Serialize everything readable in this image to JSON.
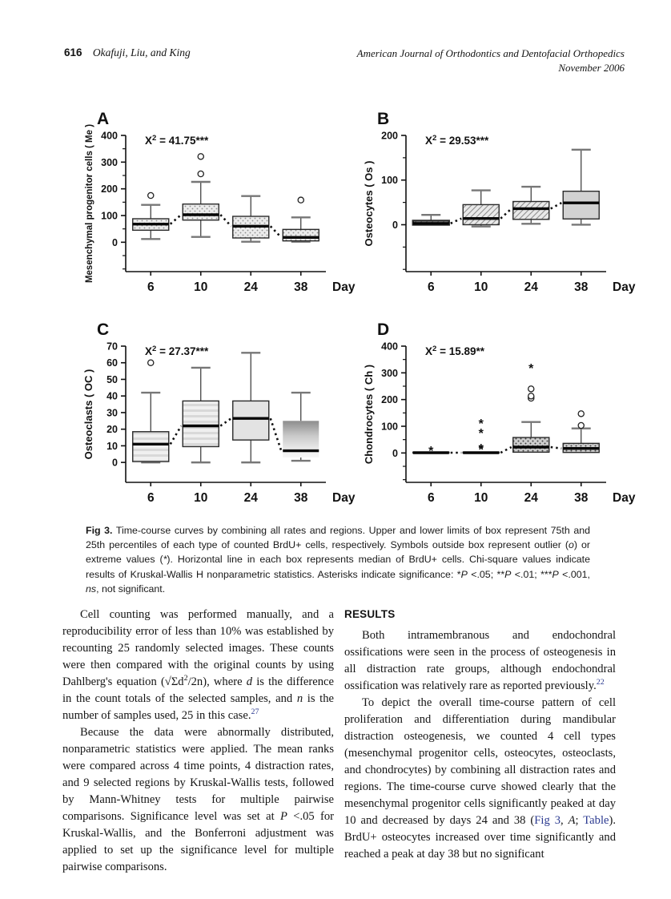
{
  "header": {
    "page_number": "616",
    "authors": "Okafuji, Liu, and King",
    "journal": "American Journal of Orthodontics and Dentofacial Orthopedics",
    "issue": "November 2006"
  },
  "chart_data": [
    {
      "type": "box",
      "panel": "A",
      "ylabel": "Mesenchymal progenitor cells ( Me )",
      "chi_square": "41.75",
      "significance": "***",
      "xlabel": "Day",
      "categories": [
        "6",
        "10",
        "24",
        "38"
      ],
      "ylim": [
        0,
        400
      ],
      "ytick_step": 100,
      "axis_min": -110,
      "minor_ticks": true,
      "boxes": [
        {
          "day": "6",
          "q1": 45,
          "median": 68,
          "q3": 88,
          "lo": 12,
          "hi": 140,
          "outliers": [
            175
          ],
          "extremes": [],
          "fill": "stipple"
        },
        {
          "day": "10",
          "q1": 83,
          "median": 103,
          "q3": 143,
          "lo": 20,
          "hi": 226,
          "outliers": [
            256,
            321
          ],
          "extremes": [],
          "fill": "stipple"
        },
        {
          "day": "24",
          "q1": 16,
          "median": 60,
          "q3": 97,
          "lo": 2,
          "hi": 173,
          "outliers": [],
          "extremes": [],
          "fill": "stipple"
        },
        {
          "day": "38",
          "q1": 5,
          "median": 18,
          "q3": 48,
          "lo": 2,
          "hi": 93,
          "outliers": [
            158
          ],
          "extremes": [],
          "fill": "stipple"
        }
      ]
    },
    {
      "type": "box",
      "panel": "B",
      "ylabel": "Osteocytes ( Os )",
      "chi_square": "29.53",
      "significance": "***",
      "xlabel": "Day",
      "categories": [
        "6",
        "10",
        "24",
        "38"
      ],
      "ylim": [
        0,
        200
      ],
      "ytick_step": 100,
      "axis_min": -105,
      "minor_ticks": true,
      "boxes": [
        {
          "day": "6",
          "q1": 0,
          "median": 3,
          "q3": 9,
          "hi": 22,
          "outliers": [],
          "extremes": [],
          "fill": "hatch",
          "thick": true
        },
        {
          "day": "10",
          "q1": 0,
          "median": 14,
          "q3": 45,
          "lo": -4,
          "hi": 77,
          "outliers": [],
          "extremes": [],
          "fill": "hatch"
        },
        {
          "day": "24",
          "q1": 12,
          "median": 36,
          "q3": 52,
          "lo": 2,
          "hi": 85,
          "outliers": [],
          "extremes": [],
          "fill": "hatch"
        },
        {
          "day": "38",
          "q1": 13,
          "median": 49,
          "q3": 75,
          "lo": 0,
          "hi": 168,
          "outliers": [],
          "extremes": [],
          "fill": "solid"
        }
      ]
    },
    {
      "type": "box",
      "panel": "C",
      "ylabel": "Osteoclasts ( OC )",
      "chi_square": "27.37",
      "significance": "***",
      "xlabel": "Day",
      "categories": [
        "6",
        "10",
        "24",
        "38"
      ],
      "ylim": [
        0,
        70
      ],
      "ytick_step": 10,
      "axis_min": -12,
      "minor_ticks": false,
      "boxes": [
        {
          "day": "6",
          "q1": 0.5,
          "median": 11,
          "q3": 18.5,
          "lo": 0,
          "hi": 42,
          "outliers": [
            60
          ],
          "extremes": [],
          "fill": "hlines"
        },
        {
          "day": "10",
          "q1": 9.5,
          "median": 22,
          "q3": 37,
          "lo": 0,
          "hi": 57,
          "outliers": [],
          "extremes": [],
          "fill": "hlines"
        },
        {
          "day": "24",
          "q1": 13.5,
          "median": 26.5,
          "q3": 37,
          "lo": 0,
          "hi": 66,
          "outliers": [],
          "extremes": [],
          "fill": "solidlight"
        },
        {
          "day": "38",
          "q1": 3,
          "median": 7,
          "q3": 25,
          "lo": 1,
          "hi": 42,
          "outliers": [],
          "extremes": [],
          "fill": "gradient"
        }
      ]
    },
    {
      "type": "box",
      "panel": "D",
      "ylabel": "Chondrocytes ( Ch )",
      "chi_square": "15.89",
      "significance": "**",
      "xlabel": "Day",
      "categories": [
        "6",
        "10",
        "24",
        "38"
      ],
      "ylim": [
        0,
        400
      ],
      "ytick_step": 100,
      "axis_min": -110,
      "minor_ticks": true,
      "boxes": [
        {
          "day": "6",
          "q1": 0,
          "median": 1,
          "q3": 3,
          "outliers": [],
          "extremes": [
            8
          ],
          "fill": "stippledark"
        },
        {
          "day": "10",
          "q1": 0,
          "median": 1,
          "q3": 3,
          "outliers": [],
          "extremes": [
            13,
            18,
            75,
            110
          ],
          "fill": "stippledark"
        },
        {
          "day": "24",
          "q1": 3,
          "median": 22,
          "q3": 58,
          "hi": 116,
          "outliers": [
            205,
            213,
            240
          ],
          "extremes": [
            317
          ],
          "fill": "stippledark"
        },
        {
          "day": "38",
          "q1": 2,
          "median": 17,
          "q3": 36,
          "hi": 92,
          "outliers": [
            103,
            147
          ],
          "extremes": [],
          "fill": "stippledark"
        }
      ]
    }
  ],
  "caption": {
    "segments": [
      {
        "t": "Fig 3.",
        "s": "b"
      },
      {
        "t": " Time-course curves by combining all rates and regions. Upper and lower limits of box represent 75th and 25th percentiles of each type of counted BrdU+ cells, respectively. Symbols outside box represent outlier ("
      },
      {
        "t": "o",
        "s": "i"
      },
      {
        "t": ") or extreme values ("
      },
      {
        "t": "*",
        "s": "i"
      },
      {
        "t": "). Horizontal line in each box represents median of BrdU+ cells. Chi-square values indicate results of Kruskal-Wallis H nonparametric statistics. Asterisks indicate significance: *"
      },
      {
        "t": "P",
        "s": "i"
      },
      {
        "t": " <.05; **"
      },
      {
        "t": "P",
        "s": "i"
      },
      {
        "t": " <.01; ***"
      },
      {
        "t": "P",
        "s": "i"
      },
      {
        "t": " <.001, "
      },
      {
        "t": "ns",
        "s": "i"
      },
      {
        "t": ", not significant."
      }
    ]
  },
  "body": {
    "left": {
      "paragraphs": [
        {
          "segments": [
            {
              "t": "Cell counting was performed manually, and a reproducibility error of less than 10% was established by recounting 25 randomly selected images. These counts were then compared with the original counts by using Dahlberg's equation (√Σd"
            },
            {
              "t": "2",
              "s": "sup"
            },
            {
              "t": "/2n), where "
            },
            {
              "t": "d",
              "s": "i"
            },
            {
              "t": " is the difference in the count totals of the selected samples, and "
            },
            {
              "t": "n",
              "s": "i"
            },
            {
              "t": " is the number of samples used, 25 in this case."
            },
            {
              "t": "27",
              "s": "suplink"
            }
          ]
        },
        {
          "segments": [
            {
              "t": "Because the data were abnormally distributed, nonparametric statistics were applied. The mean ranks were compared across 4 time points, 4 distraction rates, and 9 selected regions by Kruskal-Wallis tests, followed by Mann-Whitney tests for multiple pairwise comparisons. Significance level was set at "
            },
            {
              "t": "P",
              "s": "i"
            },
            {
              "t": " <.05 for Kruskal-Wallis, and the Bonferroni adjustment was applied to set up the significance level for multiple pairwise comparisons."
            }
          ]
        }
      ]
    },
    "right": {
      "heading": "RESULTS",
      "paragraphs": [
        {
          "segments": [
            {
              "t": "Both intramembranous and endochondral ossifications were seen in the process of osteogenesis in all distraction rate groups, although endochondral ossification was relatively rare as reported previously."
            },
            {
              "t": "22",
              "s": "suplink"
            }
          ]
        },
        {
          "segments": [
            {
              "t": "To depict the overall time-course pattern of cell proliferation and differentiation during mandibular distraction osteogenesis, we counted 4 cell types (mesenchymal progenitor cells, osteocytes, osteoclasts, and chondrocytes) by combining all distraction rates and regions. The time-course curve showed clearly that the mesenchymal progenitor cells significantly peaked at day 10 and decreased by days 24 and 38 ("
            },
            {
              "t": "Fig 3",
              "s": "link"
            },
            {
              "t": ", "
            },
            {
              "t": "A",
              "s": "i"
            },
            {
              "t": "; "
            },
            {
              "t": "Table",
              "s": "link"
            },
            {
              "t": "). BrdU+ osteocytes increased over time significantly and reached a peak at day 38 but no significant"
            }
          ]
        }
      ]
    }
  },
  "colors": {
    "link_blue": "#2b3a90",
    "axis_black": "#111111",
    "box_gray_fill": "#d2d2d2"
  }
}
